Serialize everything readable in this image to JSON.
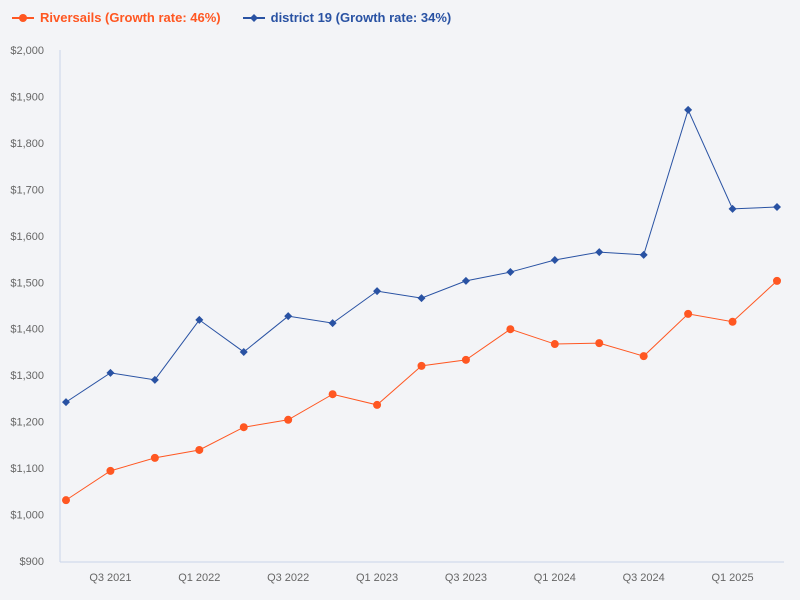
{
  "chart_data": {
    "type": "line",
    "categories": [
      "Q2 2021",
      "Q3 2021",
      "Q4 2021",
      "Q1 2022",
      "Q2 2022",
      "Q3 2022",
      "Q4 2022",
      "Q1 2023",
      "Q2 2023",
      "Q3 2023",
      "Q4 2023",
      "Q1 2024",
      "Q2 2024",
      "Q3 2024",
      "Q4 2024",
      "Q1 2025",
      "Q2 2025"
    ],
    "x_tick_labels": [
      "Q3 2021",
      "Q1 2022",
      "Q3 2022",
      "Q1 2023",
      "Q3 2023",
      "Q1 2024",
      "Q3 2024",
      "Q1 2025"
    ],
    "y_tick_labels": [
      "$900",
      "$1,000",
      "$1,100",
      "$1,200",
      "$1,300",
      "$1,400",
      "$1,500",
      "$1,600",
      "$1,700",
      "$1,800",
      "$1,900",
      "$2,000"
    ],
    "ylim": [
      900,
      2000
    ],
    "grid": false,
    "legend_placement": "top-left",
    "series": [
      {
        "name": "Riversails (Growth rate: 46%)",
        "color": "#ff5722",
        "marker": "circle",
        "values": [
          1031,
          1094,
          1122,
          1139,
          1188,
          1204,
          1259,
          1236,
          1320,
          1333,
          1399,
          1367,
          1369,
          1341,
          1432,
          1415,
          1503
        ]
      },
      {
        "name": "district 19 (Growth rate: 34%)",
        "color": "#2952a3",
        "marker": "diamond",
        "values": [
          1242,
          1305,
          1290,
          1419,
          1350,
          1427,
          1412,
          1481,
          1466,
          1503,
          1522,
          1548,
          1565,
          1559,
          1871,
          1658,
          1662
        ]
      }
    ]
  }
}
